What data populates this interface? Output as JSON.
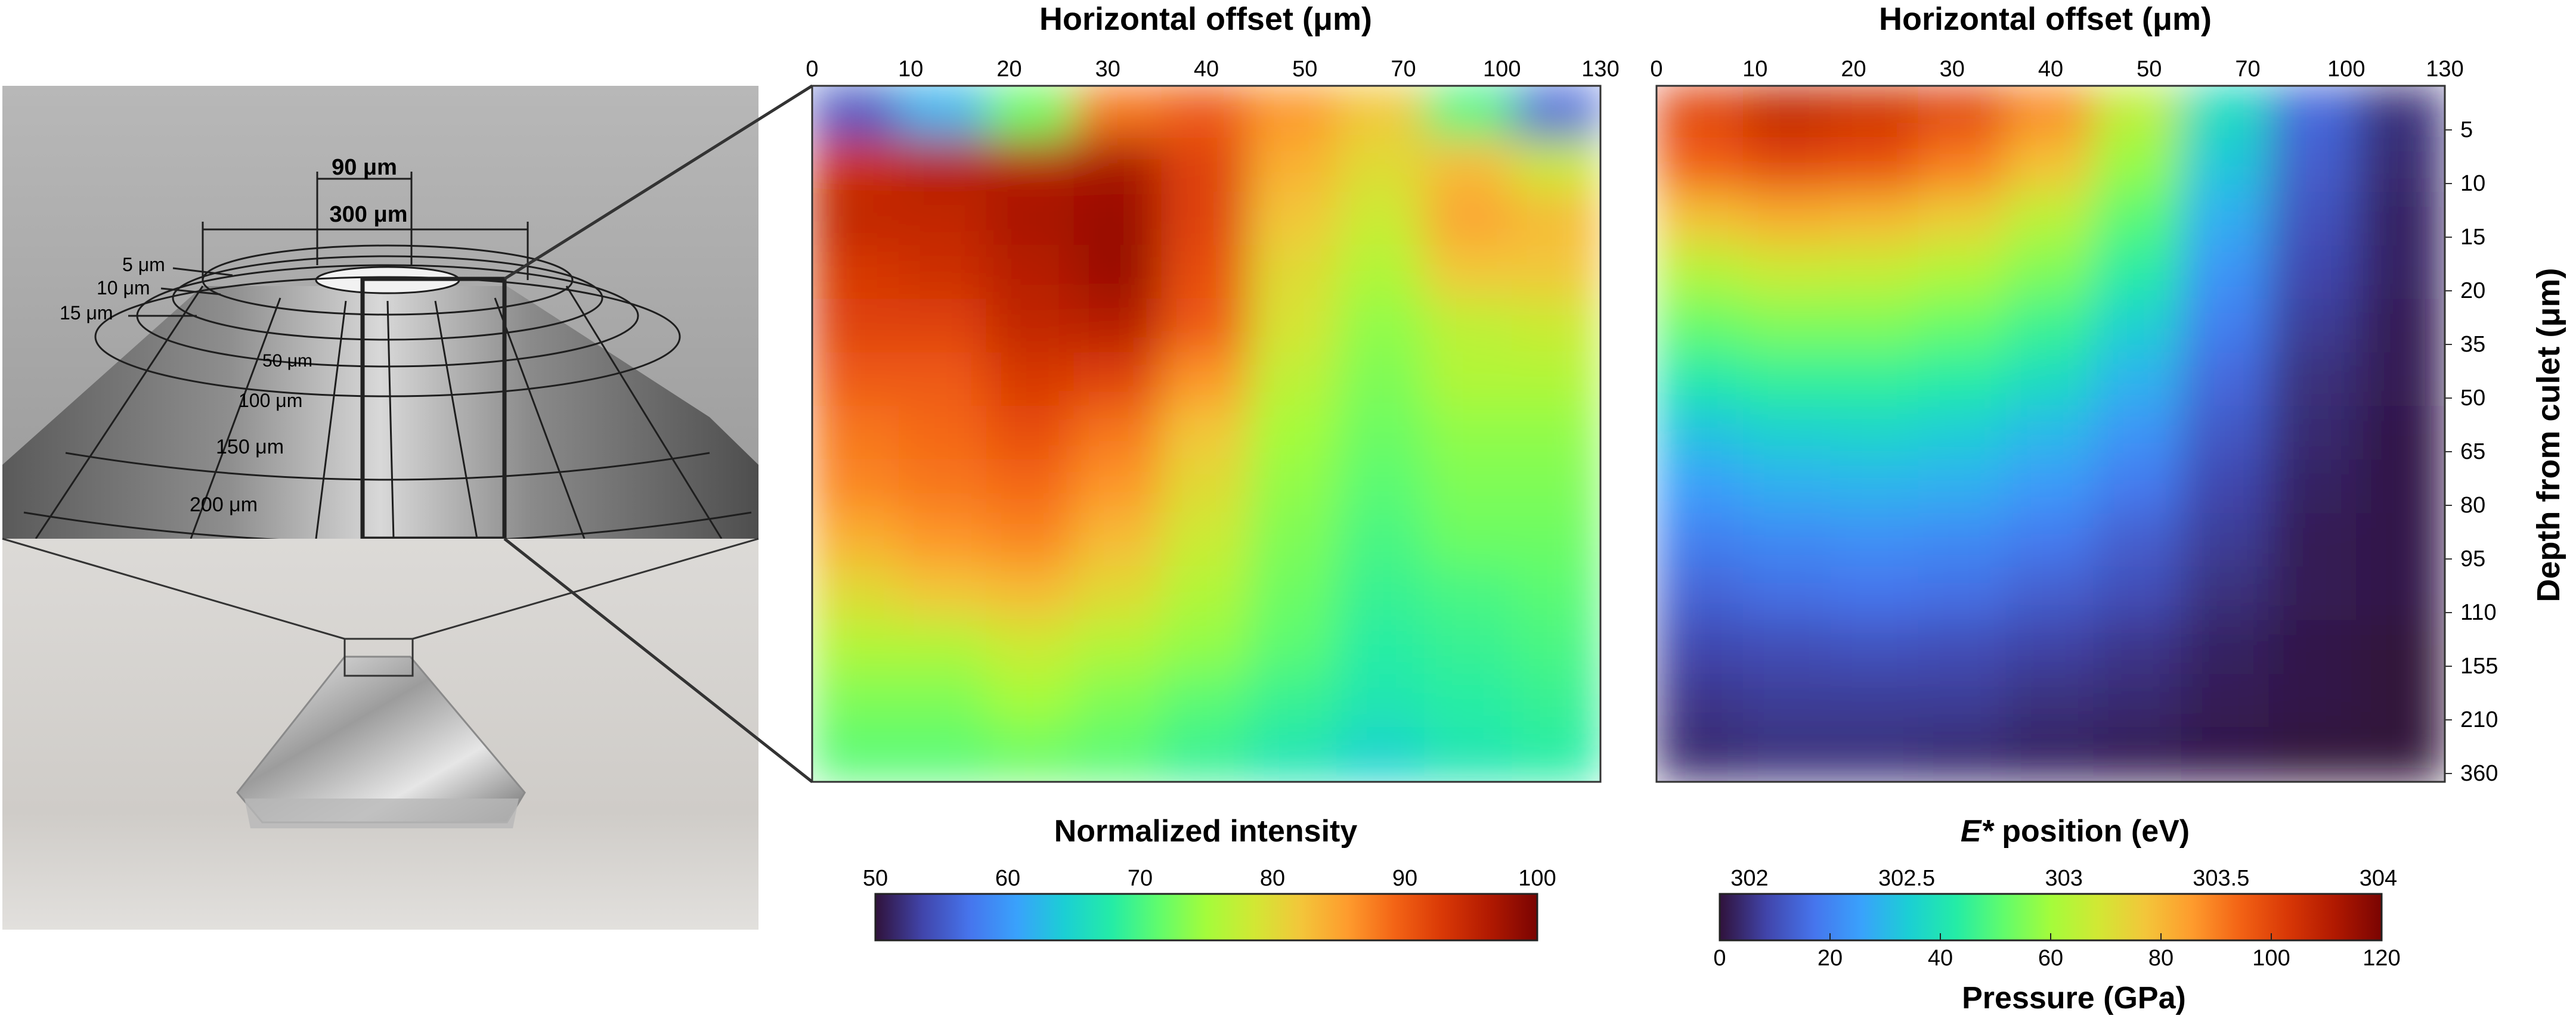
{
  "photo": {
    "culet_label": "90 μm",
    "table_label": "300 μm",
    "depth_rings": [
      "5 μm",
      "10 μm",
      "15 μm"
    ],
    "cone_rings": [
      "50 μm",
      "100 μm",
      "150 μm",
      "200 μm"
    ]
  },
  "colors": {
    "turbo": [
      "#30123b",
      "#4145ab",
      "#4675ed",
      "#39a2fc",
      "#1bcfd4",
      "#24eca6",
      "#61fc6c",
      "#a4fc3b",
      "#d1e834",
      "#f3c63a",
      "#fe9b2d",
      "#f36315",
      "#d93806",
      "#b11901",
      "#7a0402"
    ],
    "outline": "#222222",
    "photo_bg": "#c8c8c8",
    "photo_bottom_bg": "#d6d3cf"
  },
  "chart_data": [
    {
      "type": "heatmap",
      "title": "Horizontal offset (μm)",
      "xlabel": "Horizontal offset (μm)",
      "x_ticks": [
        "0",
        "10",
        "20",
        "30",
        "40",
        "50",
        "70",
        "100",
        "130"
      ],
      "y_ticks": [
        "5",
        "10",
        "15",
        "20",
        "35",
        "50",
        "65",
        "80",
        "95",
        "110",
        "155",
        "210",
        "360"
      ],
      "colorbar": {
        "label": "Normalized intensity",
        "ticks": [
          "50",
          "60",
          "70",
          "80",
          "90",
          "100"
        ],
        "range": [
          50,
          100
        ]
      },
      "x_columns": [
        0,
        10,
        20,
        30,
        40,
        50,
        70,
        100,
        130
      ],
      "y_rows": [
        5,
        10,
        15,
        20,
        35,
        50,
        65,
        80,
        95,
        110,
        155,
        210,
        360
      ],
      "values": [
        [
          55,
          62,
          72,
          88,
          90,
          86,
          82,
          70,
          56
        ],
        [
          94,
          96,
          96,
          97,
          92,
          84,
          80,
          83,
          78
        ],
        [
          95,
          95,
          97,
          98,
          92,
          82,
          78,
          85,
          83
        ],
        [
          93,
          94,
          96,
          98,
          91,
          80,
          76,
          82,
          82
        ],
        [
          92,
          92,
          95,
          96,
          90,
          79,
          74,
          77,
          78
        ],
        [
          90,
          90,
          93,
          92,
          86,
          77,
          73,
          76,
          76
        ],
        [
          88,
          89,
          91,
          88,
          82,
          75,
          72,
          74,
          74
        ],
        [
          87,
          88,
          89,
          86,
          80,
          74,
          71,
          73,
          73
        ],
        [
          84,
          86,
          87,
          83,
          78,
          73,
          70,
          72,
          72
        ],
        [
          80,
          82,
          83,
          80,
          76,
          72,
          69,
          70,
          71
        ],
        [
          76,
          76,
          78,
          76,
          74,
          71,
          68,
          69,
          70
        ],
        [
          73,
          73,
          75,
          73,
          71,
          69,
          67,
          68,
          69
        ],
        [
          71,
          71,
          72,
          71,
          69,
          67,
          65,
          67,
          68
        ]
      ]
    },
    {
      "type": "heatmap",
      "title": "Horizontal offset (μm)",
      "xlabel": "Horizontal offset (μm)",
      "ylabel": "Depth from culet (μm)",
      "x_ticks": [
        "0",
        "10",
        "20",
        "30",
        "40",
        "50",
        "70",
        "100",
        "130"
      ],
      "y_ticks": [
        "5",
        "10",
        "15",
        "20",
        "35",
        "50",
        "65",
        "80",
        "95",
        "110",
        "155",
        "210",
        "360"
      ],
      "colorbar": {
        "label_prefix": "E*",
        "label_suffix": " position (eV)",
        "top_ticks": [
          "302",
          "302.5",
          "303",
          "303.5",
          "304"
        ],
        "bottom_ticks": [
          "0",
          "20",
          "40",
          "60",
          "80",
          "100",
          "120"
        ],
        "bottom_label": "Pressure (GPa)",
        "range_pressure": [
          0,
          120
        ]
      },
      "x_columns": [
        0,
        10,
        20,
        30,
        40,
        50,
        70,
        100,
        130
      ],
      "y_rows": [
        5,
        10,
        15,
        20,
        35,
        50,
        65,
        80,
        95,
        110,
        155,
        210,
        360
      ],
      "values": [
        [
          100,
          108,
          105,
          100,
          88,
          65,
          38,
          15,
          5
        ],
        [
          95,
          100,
          98,
          90,
          78,
          58,
          33,
          13,
          4
        ],
        [
          78,
          82,
          80,
          75,
          64,
          50,
          28,
          11,
          3
        ],
        [
          63,
          67,
          66,
          62,
          55,
          43,
          23,
          9,
          3
        ],
        [
          52,
          55,
          55,
          52,
          46,
          35,
          19,
          7,
          2
        ],
        [
          42,
          45,
          45,
          43,
          38,
          29,
          15,
          5,
          2
        ],
        [
          32,
          35,
          36,
          34,
          30,
          23,
          12,
          4,
          1
        ],
        [
          25,
          28,
          29,
          28,
          24,
          18,
          9,
          3,
          1
        ],
        [
          19,
          21,
          22,
          21,
          18,
          13,
          7,
          2,
          1
        ],
        [
          14,
          16,
          17,
          16,
          13,
          10,
          5,
          2,
          1
        ],
        [
          9,
          10,
          11,
          10,
          8,
          6,
          3,
          1,
          0
        ],
        [
          6,
          7,
          7,
          7,
          5,
          4,
          2,
          1,
          0
        ],
        [
          4,
          5,
          5,
          4,
          3,
          2,
          1,
          0,
          0
        ]
      ]
    }
  ]
}
